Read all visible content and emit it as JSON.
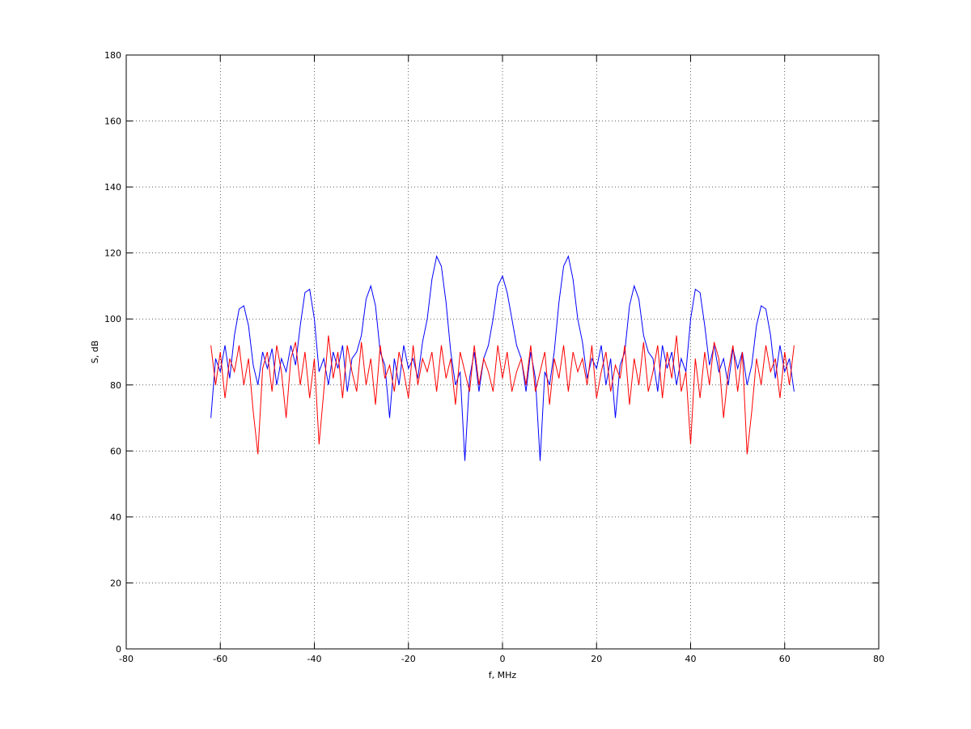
{
  "chart_data": {
    "type": "line",
    "x_label": "f, MHz",
    "y_label": "S, dB",
    "x": [
      -62,
      -61,
      -60,
      -59,
      -58,
      -57,
      -56,
      -55,
      -54,
      -53,
      -52,
      -51,
      -50,
      -49,
      -48,
      -47,
      -46,
      -45,
      -44,
      -43,
      -42,
      -41,
      -40,
      -39,
      -38,
      -37,
      -36,
      -35,
      -34,
      -33,
      -32,
      -31,
      -30,
      -29,
      -28,
      -27,
      -26,
      -25,
      -24,
      -23,
      -22,
      -21,
      -20,
      -19,
      -18,
      -17,
      -16,
      -15,
      -14,
      -13,
      -12,
      -11,
      -10,
      -9,
      -8,
      -7,
      -6,
      -5,
      -4,
      -3,
      -2,
      -1,
      0,
      1,
      2,
      3,
      4,
      5,
      6,
      7,
      8,
      9,
      10,
      11,
      12,
      13,
      14,
      15,
      16,
      17,
      18,
      19,
      20,
      21,
      22,
      23,
      24,
      25,
      26,
      27,
      28,
      29,
      30,
      31,
      32,
      33,
      34,
      35,
      36,
      37,
      38,
      39,
      40,
      41,
      42,
      43,
      44,
      45,
      46,
      47,
      48,
      49,
      50,
      51,
      52,
      53,
      54,
      55,
      56,
      57,
      58,
      59,
      60,
      61,
      62
    ],
    "series": [
      {
        "color": "#0000ff",
        "values": [
          70,
          88,
          84,
          92,
          82,
          95,
          103,
          104,
          98,
          86,
          80,
          90,
          85,
          91,
          80,
          88,
          84,
          92,
          86,
          98,
          108,
          109,
          100,
          84,
          88,
          80,
          90,
          85,
          92,
          78,
          88,
          90,
          95,
          106,
          110,
          104,
          90,
          86,
          70,
          88,
          80,
          92,
          85,
          88,
          82,
          93,
          100,
          112,
          119,
          116,
          105,
          90,
          80,
          84,
          57,
          82,
          90,
          78,
          88,
          92,
          100,
          110,
          113,
          108,
          100,
          92,
          88,
          78,
          90,
          82,
          57,
          84,
          80,
          90,
          105,
          116,
          119,
          112,
          100,
          93,
          82,
          88,
          85,
          92,
          80,
          88,
          70,
          86,
          90,
          104,
          110,
          106,
          95,
          90,
          88,
          78,
          92,
          85,
          90,
          80,
          88,
          84,
          100,
          109,
          108,
          98,
          86,
          92,
          84,
          88,
          80,
          91,
          85,
          90,
          80,
          86,
          98,
          104,
          103,
          95,
          82,
          92,
          84,
          88,
          78
        ]
      },
      {
        "color": "#ff0000",
        "values": [
          92,
          80,
          90,
          76,
          88,
          84,
          92,
          80,
          88,
          72,
          59,
          85,
          90,
          78,
          92,
          84,
          70,
          88,
          93,
          80,
          90,
          76,
          88,
          62,
          78,
          95,
          82,
          90,
          76,
          92,
          84,
          78,
          93,
          80,
          88,
          74,
          92,
          82,
          86,
          78,
          90,
          84,
          76,
          92,
          80,
          88,
          84,
          90,
          78,
          92,
          82,
          88,
          74,
          90,
          84,
          78,
          92,
          80,
          88,
          84,
          78,
          92,
          82,
          90,
          78,
          84,
          88,
          80,
          92,
          78,
          84,
          90,
          74,
          88,
          82,
          92,
          78,
          90,
          84,
          88,
          80,
          92,
          76,
          84,
          90,
          78,
          86,
          82,
          92,
          74,
          88,
          80,
          93,
          78,
          84,
          92,
          76,
          90,
          82,
          95,
          78,
          84,
          62,
          88,
          76,
          90,
          80,
          93,
          88,
          70,
          84,
          92,
          78,
          90,
          59,
          72,
          88,
          80,
          92,
          84,
          88,
          76,
          90,
          80,
          92
        ]
      }
    ],
    "xlim": [
      -80,
      80
    ],
    "xticks": [
      -80,
      -60,
      -40,
      -20,
      0,
      20,
      40,
      60,
      80
    ],
    "ylim": [
      0,
      180
    ],
    "yticks": [
      0,
      20,
      40,
      60,
      80,
      100,
      120,
      140,
      160,
      180
    ],
    "grid": true
  }
}
